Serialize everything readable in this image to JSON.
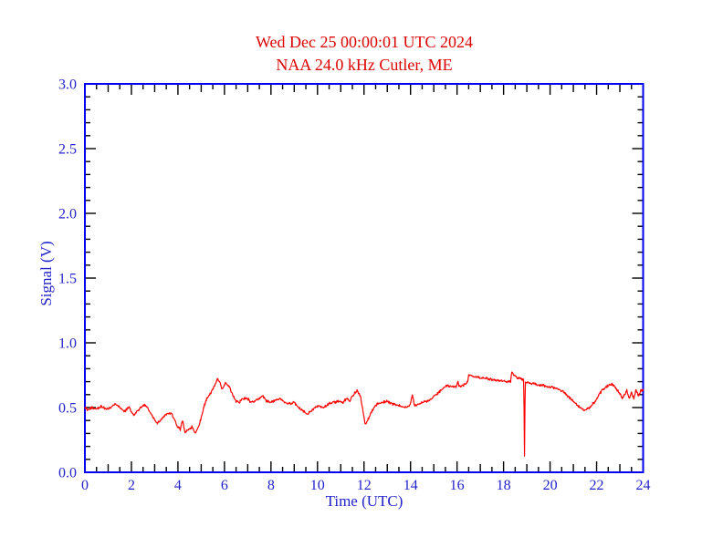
{
  "window": {
    "background": "#ffffff"
  },
  "chart_data": {
    "type": "line",
    "title": "Wed Dec 25 00:00:01 UTC 2024",
    "subtitle": "NAA 24.0 kHz Cutler, ME",
    "xlabel": "Time (UTC)",
    "ylabel": "Signal (V)",
    "xlim": [
      0,
      24
    ],
    "ylim": [
      0.0,
      3.0
    ],
    "x_major_tick_step": 2,
    "x_minor_tick_step": 0.5,
    "y_major_tick_step": 0.5,
    "y_minor_tick_step": 0.1,
    "x_tick_labels": [
      "0",
      "2",
      "4",
      "6",
      "8",
      "10",
      "12",
      "14",
      "16",
      "18",
      "20",
      "22",
      "24"
    ],
    "y_tick_labels": [
      "0.0",
      "0.5",
      "1.0",
      "1.5",
      "2.0",
      "2.5",
      "3.0"
    ],
    "grid": false,
    "frame": "box-with-inward-ticks",
    "legend": "none",
    "colors": {
      "title": "#dd0000",
      "axis_frame": "#0000ee",
      "tick_marks": "#000000",
      "axis_text": "#2222cc",
      "series": "#ff0000",
      "background": "#ffffff"
    },
    "series": [
      {
        "name": "NAA signal strength",
        "color": "#ff0000",
        "noise_amplitude": 0.012,
        "samples_per_hour": 50,
        "keypoints": [
          [
            0.0,
            0.5
          ],
          [
            0.15,
            0.48
          ],
          [
            0.3,
            0.5
          ],
          [
            0.5,
            0.49
          ],
          [
            0.7,
            0.51
          ],
          [
            0.9,
            0.49
          ],
          [
            1.1,
            0.5
          ],
          [
            1.3,
            0.53
          ],
          [
            1.5,
            0.5
          ],
          [
            1.7,
            0.47
          ],
          [
            1.9,
            0.5
          ],
          [
            2.0,
            0.47
          ],
          [
            2.1,
            0.44
          ],
          [
            2.25,
            0.47
          ],
          [
            2.4,
            0.5
          ],
          [
            2.55,
            0.52
          ],
          [
            2.7,
            0.5
          ],
          [
            2.85,
            0.45
          ],
          [
            3.0,
            0.4
          ],
          [
            3.1,
            0.38
          ],
          [
            3.25,
            0.4
          ],
          [
            3.4,
            0.43
          ],
          [
            3.55,
            0.45
          ],
          [
            3.7,
            0.46
          ],
          [
            3.85,
            0.41
          ],
          [
            4.0,
            0.35
          ],
          [
            4.1,
            0.33
          ],
          [
            4.2,
            0.4
          ],
          [
            4.3,
            0.31
          ],
          [
            4.45,
            0.33
          ],
          [
            4.6,
            0.35
          ],
          [
            4.75,
            0.3
          ],
          [
            4.9,
            0.36
          ],
          [
            5.0,
            0.42
          ],
          [
            5.1,
            0.5
          ],
          [
            5.25,
            0.57
          ],
          [
            5.4,
            0.61
          ],
          [
            5.55,
            0.66
          ],
          [
            5.7,
            0.72
          ],
          [
            5.8,
            0.7
          ],
          [
            5.9,
            0.64
          ],
          [
            6.05,
            0.69
          ],
          [
            6.2,
            0.66
          ],
          [
            6.35,
            0.6
          ],
          [
            6.5,
            0.55
          ],
          [
            6.65,
            0.54
          ],
          [
            6.8,
            0.57
          ],
          [
            7.0,
            0.57
          ],
          [
            7.15,
            0.54
          ],
          [
            7.3,
            0.55
          ],
          [
            7.5,
            0.57
          ],
          [
            7.65,
            0.59
          ],
          [
            7.8,
            0.55
          ],
          [
            8.0,
            0.54
          ],
          [
            8.2,
            0.56
          ],
          [
            8.4,
            0.57
          ],
          [
            8.6,
            0.54
          ],
          [
            8.8,
            0.53
          ],
          [
            9.0,
            0.54
          ],
          [
            9.2,
            0.5
          ],
          [
            9.4,
            0.47
          ],
          [
            9.55,
            0.45
          ],
          [
            9.7,
            0.47
          ],
          [
            9.9,
            0.5
          ],
          [
            10.1,
            0.51
          ],
          [
            10.3,
            0.5
          ],
          [
            10.5,
            0.53
          ],
          [
            10.7,
            0.54
          ],
          [
            10.9,
            0.55
          ],
          [
            11.1,
            0.54
          ],
          [
            11.25,
            0.57
          ],
          [
            11.4,
            0.55
          ],
          [
            11.55,
            0.6
          ],
          [
            11.7,
            0.63
          ],
          [
            11.85,
            0.59
          ],
          [
            11.95,
            0.48
          ],
          [
            12.05,
            0.37
          ],
          [
            12.15,
            0.4
          ],
          [
            12.3,
            0.46
          ],
          [
            12.45,
            0.51
          ],
          [
            12.6,
            0.53
          ],
          [
            12.8,
            0.54
          ],
          [
            13.0,
            0.55
          ],
          [
            13.2,
            0.53
          ],
          [
            13.4,
            0.52
          ],
          [
            13.6,
            0.51
          ],
          [
            13.8,
            0.5
          ],
          [
            13.95,
            0.51
          ],
          [
            14.08,
            0.6
          ],
          [
            14.16,
            0.52
          ],
          [
            14.3,
            0.52
          ],
          [
            14.5,
            0.54
          ],
          [
            14.7,
            0.55
          ],
          [
            14.9,
            0.57
          ],
          [
            15.1,
            0.6
          ],
          [
            15.3,
            0.63
          ],
          [
            15.45,
            0.655
          ],
          [
            15.6,
            0.67
          ],
          [
            15.75,
            0.665
          ],
          [
            15.9,
            0.66
          ],
          [
            15.98,
            0.665
          ],
          [
            16.03,
            0.71
          ],
          [
            16.08,
            0.665
          ],
          [
            16.2,
            0.67
          ],
          [
            16.35,
            0.68
          ],
          [
            16.45,
            0.7
          ],
          [
            16.5,
            0.745
          ],
          [
            16.55,
            0.755
          ],
          [
            16.65,
            0.74
          ],
          [
            16.8,
            0.735
          ],
          [
            17.0,
            0.73
          ],
          [
            17.2,
            0.725
          ],
          [
            17.4,
            0.72
          ],
          [
            17.6,
            0.715
          ],
          [
            17.8,
            0.71
          ],
          [
            18.0,
            0.705
          ],
          [
            18.15,
            0.7
          ],
          [
            18.3,
            0.7
          ],
          [
            18.36,
            0.775
          ],
          [
            18.45,
            0.75
          ],
          [
            18.6,
            0.73
          ],
          [
            18.75,
            0.72
          ],
          [
            18.87,
            0.71
          ],
          [
            18.9,
            0.125
          ],
          [
            18.93,
            0.7
          ],
          [
            19.1,
            0.69
          ],
          [
            19.3,
            0.685
          ],
          [
            19.5,
            0.675
          ],
          [
            19.7,
            0.67
          ],
          [
            19.9,
            0.66
          ],
          [
            20.1,
            0.655
          ],
          [
            20.3,
            0.645
          ],
          [
            20.5,
            0.63
          ],
          [
            20.7,
            0.6
          ],
          [
            20.9,
            0.565
          ],
          [
            21.1,
            0.53
          ],
          [
            21.3,
            0.5
          ],
          [
            21.5,
            0.48
          ],
          [
            21.7,
            0.5
          ],
          [
            21.9,
            0.54
          ],
          [
            22.1,
            0.6
          ],
          [
            22.3,
            0.645
          ],
          [
            22.5,
            0.67
          ],
          [
            22.65,
            0.685
          ],
          [
            22.8,
            0.655
          ],
          [
            22.95,
            0.62
          ],
          [
            23.1,
            0.57
          ],
          [
            23.2,
            0.6
          ],
          [
            23.3,
            0.63
          ],
          [
            23.4,
            0.57
          ],
          [
            23.5,
            0.62
          ],
          [
            23.6,
            0.57
          ],
          [
            23.7,
            0.64
          ],
          [
            23.8,
            0.59
          ],
          [
            23.9,
            0.63
          ],
          [
            24.0,
            0.63
          ]
        ]
      }
    ]
  }
}
